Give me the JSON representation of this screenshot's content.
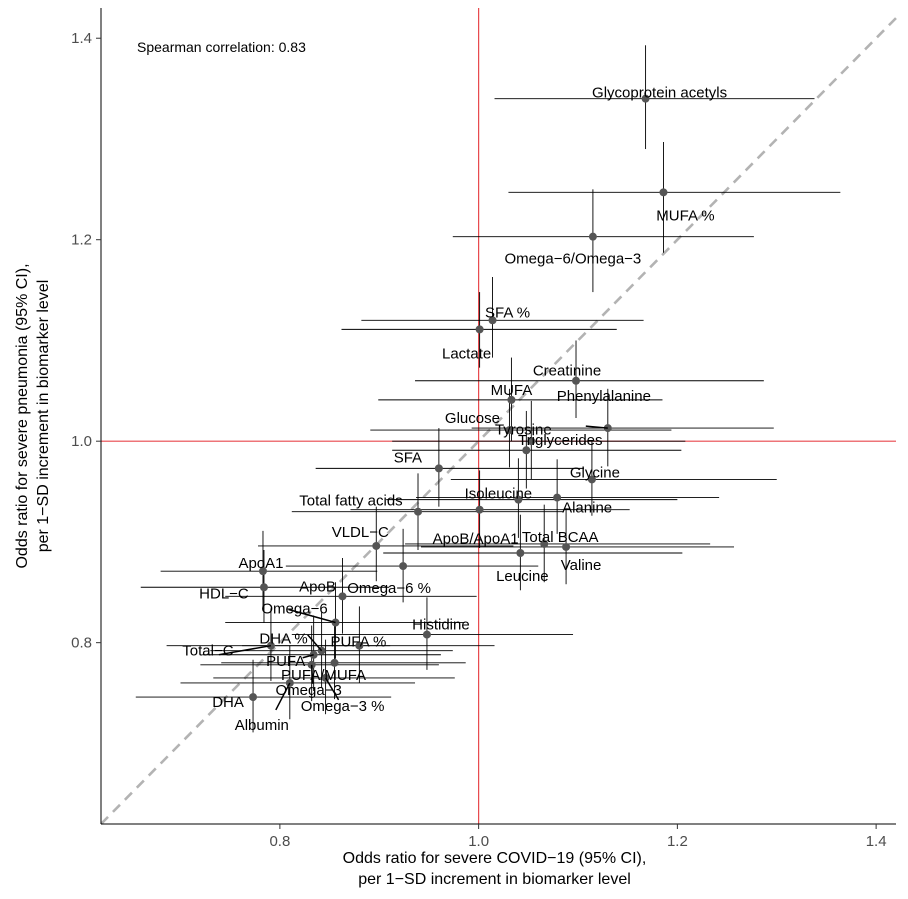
{
  "chart_data": {
    "type": "scatter",
    "annotation": "Spearman correlation: 0.83",
    "xlabel": [
      "Odds ratio for severe COVID−19 (95% CI),",
      "per 1−SD increment in biomarker level"
    ],
    "ylabel": [
      "Odds ratio for severe pneumonia (95% CI),",
      "per 1−SD increment in biomarker level"
    ],
    "xlim": [
      0.62,
      1.42
    ],
    "ylim": [
      0.62,
      1.43
    ],
    "x_ticks": [
      0.8,
      1.0,
      1.2,
      1.4
    ],
    "x_tick_labels": [
      "0.8",
      "1.0",
      "1.2",
      "1.4"
    ],
    "y_ticks": [
      0.8,
      1.0,
      1.2,
      1.4
    ],
    "y_tick_labels": [
      "0.8",
      "1.0",
      "1.2",
      "1.4"
    ],
    "reference_x": 1.0,
    "reference_y": 1.0,
    "identity_line": true,
    "grid": false,
    "colors": {
      "reference": "#e8474b",
      "identity": "#b3b3b3",
      "point": "#555555",
      "errorbar": "#000000"
    },
    "points": [
      {
        "label": "Glycoprotein acetyls",
        "x": 1.168,
        "y": 1.34,
        "xlo": 1.016,
        "xhi": 1.338,
        "ylo": 1.29,
        "yhi": 1.393
      },
      {
        "label": "MUFA %",
        "x": 1.186,
        "y": 1.247,
        "xlo": 1.03,
        "xhi": 1.364,
        "ylo": 1.187,
        "yhi": 1.297
      },
      {
        "label": "Omega−6/Omega−3",
        "x": 1.115,
        "y": 1.203,
        "xlo": 0.974,
        "xhi": 1.277,
        "ylo": 1.148,
        "yhi": 1.25
      },
      {
        "label": "SFA %",
        "x": 1.014,
        "y": 1.12,
        "xlo": 0.882,
        "xhi": 1.166,
        "ylo": 1.083,
        "yhi": 1.163
      },
      {
        "label": "Lactate",
        "x": 1.001,
        "y": 1.111,
        "xlo": 0.862,
        "xhi": 1.139,
        "ylo": 1.073,
        "yhi": 1.148
      },
      {
        "label": "Creatinine",
        "x": 1.098,
        "y": 1.06,
        "xlo": 0.936,
        "xhi": 1.287,
        "ylo": 1.023,
        "yhi": 1.1
      },
      {
        "label": "MUFA",
        "x": 1.033,
        "y": 1.041,
        "xlo": 0.899,
        "xhi": 1.185,
        "ylo": 1.0,
        "yhi": 1.083
      },
      {
        "label": "Phenylalanine",
        "x": 1.13,
        "y": 1.013,
        "xlo": 0.993,
        "xhi": 1.297,
        "ylo": 0.975,
        "yhi": 1.052
      },
      {
        "label": "Glucose",
        "x": 1.031,
        "y": 1.011,
        "xlo": 0.891,
        "xhi": 1.194,
        "ylo": 0.974,
        "yhi": 1.052
      },
      {
        "label": "Triglycerides",
        "x": 1.053,
        "y": 1.0,
        "xlo": 0.913,
        "xhi": 1.208,
        "ylo": 0.962,
        "yhi": 1.04
      },
      {
        "label": "Tyrosine",
        "x": 1.048,
        "y": 0.991,
        "xlo": 0.913,
        "xhi": 1.204,
        "ylo": 0.953,
        "yhi": 1.03
      },
      {
        "label": "SFA",
        "x": 0.96,
        "y": 0.973,
        "xlo": 0.836,
        "xhi": 1.106,
        "ylo": 0.935,
        "yhi": 1.013
      },
      {
        "label": "Glycine",
        "x": 1.114,
        "y": 0.962,
        "xlo": 0.972,
        "xhi": 1.3,
        "ylo": 0.926,
        "yhi": 1.001
      },
      {
        "label": "Alanine",
        "x": 1.079,
        "y": 0.944,
        "xlo": 0.937,
        "xhi": 1.242,
        "ylo": 0.908,
        "yhi": 0.982
      },
      {
        "label": "Isoleucine",
        "x": 1.04,
        "y": 0.942,
        "xlo": 0.907,
        "xhi": 1.2,
        "ylo": 0.904,
        "yhi": 0.983
      },
      {
        "label": "ApoB/ApoA1",
        "x": 1.001,
        "y": 0.932,
        "xlo": 0.871,
        "xhi": 1.152,
        "ylo": 0.894,
        "yhi": 0.971
      },
      {
        "label": "Total fatty acids",
        "x": 0.939,
        "y": 0.93,
        "xlo": 0.812,
        "xhi": 1.085,
        "ylo": 0.892,
        "yhi": 0.968
      },
      {
        "label": "VLDL−C",
        "x": 0.897,
        "y": 0.896,
        "xlo": 0.778,
        "xhi": 1.035,
        "ylo": 0.861,
        "yhi": 0.935
      },
      {
        "label": "Total BCAA",
        "x": 1.066,
        "y": 0.898,
        "xlo": 0.926,
        "xhi": 1.233,
        "ylo": 0.86,
        "yhi": 0.937
      },
      {
        "label": "Valine",
        "x": 1.088,
        "y": 0.895,
        "xlo": 0.942,
        "xhi": 1.257,
        "ylo": 0.858,
        "yhi": 0.932
      },
      {
        "label": "Leucine",
        "x": 1.042,
        "y": 0.889,
        "xlo": 0.904,
        "xhi": 1.205,
        "ylo": 0.852,
        "yhi": 0.927
      },
      {
        "label": "Omega−6 %",
        "x": 0.924,
        "y": 0.876,
        "xlo": 0.806,
        "xhi": 1.06,
        "ylo": 0.84,
        "yhi": 0.913
      },
      {
        "label": "ApoA1",
        "x": 0.783,
        "y": 0.871,
        "xlo": 0.68,
        "xhi": 0.898,
        "ylo": 0.835,
        "yhi": 0.911
      },
      {
        "label": "HDL−C",
        "x": 0.784,
        "y": 0.855,
        "xlo": 0.66,
        "xhi": 0.91,
        "ylo": 0.82,
        "yhi": 0.892
      },
      {
        "label": "ApoB",
        "x": 0.863,
        "y": 0.846,
        "xlo": 0.745,
        "xhi": 0.998,
        "ylo": 0.809,
        "yhi": 0.884
      },
      {
        "label": "Omega−6",
        "x": 0.856,
        "y": 0.82,
        "xlo": 0.745,
        "xhi": 0.986,
        "ylo": 0.784,
        "yhi": 0.86
      },
      {
        "label": "Histidine",
        "x": 0.948,
        "y": 0.808,
        "xlo": 0.812,
        "xhi": 1.095,
        "ylo": 0.773,
        "yhi": 0.845
      },
      {
        "label": "PUFA %",
        "x": 0.88,
        "y": 0.797,
        "xlo": 0.762,
        "xhi": 1.016,
        "ylo": 0.76,
        "yhi": 0.836
      },
      {
        "label": "DHA %",
        "x": 0.842,
        "y": 0.792,
        "xlo": 0.73,
        "xhi": 0.974,
        "ylo": 0.755,
        "yhi": 0.83
      },
      {
        "label": "Total−C",
        "x": 0.791,
        "y": 0.797,
        "xlo": 0.686,
        "xhi": 0.911,
        "ylo": 0.762,
        "yhi": 0.834
      },
      {
        "label": "PUFA",
        "x": 0.834,
        "y": 0.788,
        "xlo": 0.722,
        "xhi": 0.962,
        "ylo": 0.752,
        "yhi": 0.827
      },
      {
        "label": "PUFA/MUFA",
        "x": 0.855,
        "y": 0.78,
        "xlo": 0.741,
        "xhi": 0.987,
        "ylo": 0.744,
        "yhi": 0.818
      },
      {
        "label": "Omega−3",
        "x": 0.832,
        "y": 0.778,
        "xlo": 0.72,
        "xhi": 0.96,
        "ylo": 0.742,
        "yhi": 0.817
      },
      {
        "label": "Omega−3 %",
        "x": 0.846,
        "y": 0.765,
        "xlo": 0.733,
        "xhi": 0.976,
        "ylo": 0.729,
        "yhi": 0.803
      },
      {
        "label": "Albumin",
        "x": 0.81,
        "y": 0.76,
        "xlo": 0.7,
        "xhi": 0.936,
        "ylo": 0.724,
        "yhi": 0.797
      },
      {
        "label": "DHA",
        "x": 0.773,
        "y": 0.746,
        "xlo": 0.655,
        "xhi": 0.912,
        "ylo": 0.711,
        "yhi": 0.783
      }
    ]
  }
}
